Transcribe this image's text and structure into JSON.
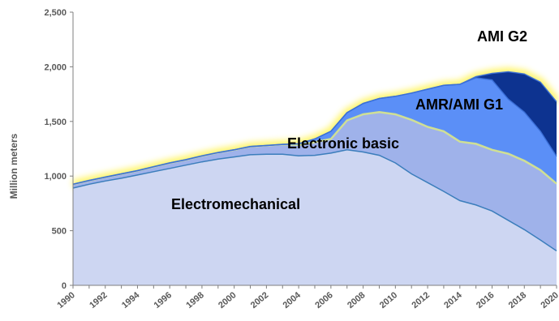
{
  "chart_data": {
    "type": "area",
    "stacked": true,
    "title": "",
    "xlabel": "",
    "ylabel": "Million meters",
    "ylim": [
      0,
      2500
    ],
    "yticks": [
      0,
      500,
      1000,
      1500,
      2000,
      2500
    ],
    "ytick_labels": [
      "0",
      "500",
      "1,000",
      "1,500",
      "2,000",
      "2,500"
    ],
    "x": [
      1990,
      1991,
      1992,
      1993,
      1994,
      1995,
      1996,
      1997,
      1998,
      1999,
      2000,
      2001,
      2002,
      2003,
      2004,
      2005,
      2006,
      2007,
      2008,
      2009,
      2010,
      2011,
      2012,
      2013,
      2014,
      2015,
      2016,
      2017,
      2018,
      2019,
      2020
    ],
    "xtick_labels": [
      "1990",
      "1992",
      "1994",
      "1996",
      "1998",
      "2000",
      "2002",
      "2004",
      "2006",
      "2008",
      "2010",
      "2012",
      "2014",
      "2016",
      "2018",
      "2020"
    ],
    "grid": false,
    "legend": "none",
    "series": [
      {
        "name": "Electromechanical",
        "color": "#cdd6f2",
        "values": [
          890,
          925,
          955,
          980,
          1010,
          1040,
          1070,
          1100,
          1130,
          1155,
          1175,
          1195,
          1200,
          1200,
          1185,
          1190,
          1210,
          1240,
          1220,
          1190,
          1120,
          1020,
          940,
          860,
          775,
          735,
          680,
          595,
          510,
          415,
          315
        ]
      },
      {
        "name": "Electronic basic",
        "color": "#9fb2ea",
        "values": [
          35,
          35,
          35,
          40,
          40,
          45,
          50,
          50,
          55,
          60,
          65,
          75,
          80,
          90,
          100,
          120,
          130,
          270,
          345,
          395,
          445,
          495,
          510,
          550,
          540,
          560,
          560,
          610,
          630,
          640,
          615
        ]
      },
      {
        "name": "AMR/AMI G1",
        "color": "#5b8ff7",
        "values": [
          0,
          0,
          0,
          0,
          0,
          0,
          0,
          0,
          0,
          0,
          0,
          0,
          0,
          0,
          10,
          30,
          70,
          70,
          100,
          125,
          165,
          245,
          345,
          420,
          525,
          605,
          640,
          500,
          445,
          355,
          250
        ]
      },
      {
        "name": "AMI G2",
        "color": "#0d3390",
        "values": [
          0,
          0,
          0,
          0,
          0,
          0,
          0,
          0,
          0,
          0,
          0,
          0,
          0,
          0,
          0,
          0,
          0,
          0,
          0,
          0,
          0,
          0,
          0,
          0,
          0,
          10,
          60,
          250,
          350,
          450,
          500
        ]
      }
    ],
    "annotations": [
      "Electromechanical",
      "Electronic basic",
      "AMR/AMI G1",
      "AMI G2"
    ]
  }
}
